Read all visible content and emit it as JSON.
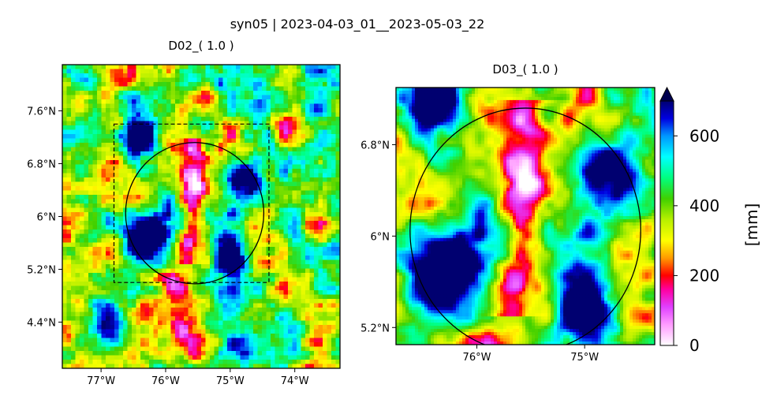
{
  "suptitle": "syn05 | 2023-04-03_01__2023-05-03_22",
  "chart_data": [
    {
      "type": "heatmap",
      "title": "D02_( 1.0 )",
      "xlim": [
        -77.6,
        -73.3
      ],
      "ylim": [
        3.7,
        8.3
      ],
      "xticks": [
        -77,
        -76,
        -75,
        -74
      ],
      "xtick_labels": [
        "77°W",
        "76°W",
        "75°W",
        "74°W"
      ],
      "yticks": [
        4.4,
        5.2,
        6.0,
        6.8,
        7.6
      ],
      "ytick_labels": [
        "4.4°N",
        "5.2°N",
        "6°N",
        "6.8°N",
        "7.6°N"
      ],
      "inner_domain_box": {
        "lon": [
          -76.8,
          -74.4
        ],
        "lat": [
          5.0,
          7.4
        ]
      },
      "circle": {
        "center_lon": -75.55,
        "center_lat": 6.05,
        "radius_deg": 1.07
      }
    },
    {
      "type": "heatmap",
      "title": "D03_( 1.0 )",
      "xlim": [
        -76.75,
        -74.35
      ],
      "ylim": [
        5.05,
        7.3
      ],
      "xticks": [
        -76,
        -75
      ],
      "xtick_labels": [
        "76°W",
        "75°W"
      ],
      "yticks": [
        5.2,
        6.0,
        6.8
      ],
      "ytick_labels": [
        "5.2°N",
        "6°N",
        "6.8°N"
      ],
      "circle": {
        "center_lon": -75.55,
        "center_lat": 6.05,
        "radius_deg": 1.07
      }
    }
  ],
  "colorbar": {
    "label": "[mm]",
    "range": [
      0,
      700
    ],
    "ticks": [
      0,
      200,
      400,
      600
    ],
    "tick_labels": [
      "0",
      "200",
      "400",
      "600"
    ],
    "extend": "max",
    "stops": [
      {
        "v": 0,
        "c": "#ffffff"
      },
      {
        "v": 60,
        "c": "#ff9cff"
      },
      {
        "v": 110,
        "c": "#e040ff"
      },
      {
        "v": 160,
        "c": "#ff00a0"
      },
      {
        "v": 200,
        "c": "#ff0000"
      },
      {
        "v": 250,
        "c": "#ff9a00"
      },
      {
        "v": 300,
        "c": "#ffff00"
      },
      {
        "v": 360,
        "c": "#b8f000"
      },
      {
        "v": 420,
        "c": "#40d000"
      },
      {
        "v": 480,
        "c": "#00ff80"
      },
      {
        "v": 540,
        "c": "#00ffff"
      },
      {
        "v": 600,
        "c": "#0096ff"
      },
      {
        "v": 650,
        "c": "#0000e0"
      },
      {
        "v": 700,
        "c": "#000070"
      }
    ]
  }
}
